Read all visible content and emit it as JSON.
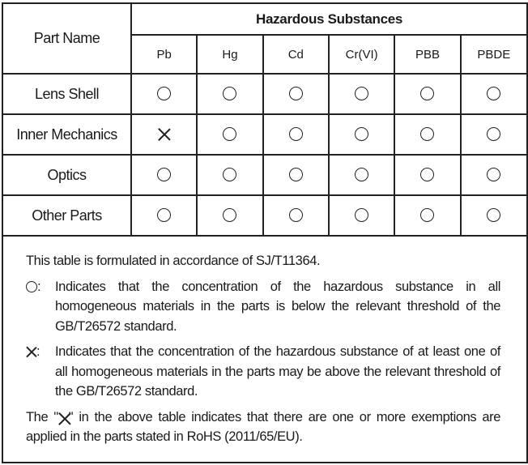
{
  "table": {
    "group_header": "Hazardous Substances",
    "part_name_header": "Part Name",
    "substances": [
      "Pb",
      "Hg",
      "Cd",
      "Cr(VI)",
      "PBB",
      "PBDE"
    ],
    "rows": [
      {
        "part": "Lens Shell",
        "marks": [
          "circle",
          "circle",
          "circle",
          "circle",
          "circle",
          "circle"
        ]
      },
      {
        "part": "Inner Mechanics",
        "marks": [
          "cross",
          "circle",
          "circle",
          "circle",
          "circle",
          "circle"
        ]
      },
      {
        "part": "Optics",
        "marks": [
          "circle",
          "circle",
          "circle",
          "circle",
          "circle",
          "circle"
        ]
      },
      {
        "part": "Other Parts",
        "marks": [
          "circle",
          "circle",
          "circle",
          "circle",
          "circle",
          "circle"
        ]
      }
    ]
  },
  "notes": {
    "intro": "This table is formulated in accordance of SJ/T11364.",
    "circle_symbol_suffix": ":",
    "circle_text": "Indicates that the concentration of the hazardous substance in all homogeneous materials in the parts is below the relevant threshold of the GB/T26572 standard.",
    "cross_symbol_suffix": ":",
    "cross_text": "Indicates that the concentration of the hazardous substance of at least one of all homogeneous materials in the parts may be above the relevant threshold of the GB/T26572 standard.",
    "exemption_before": "The \"",
    "exemption_after": "\" in the above table indicates that there are one or more exemptions are applied in the parts stated in RoHS (2011/65/EU)."
  }
}
